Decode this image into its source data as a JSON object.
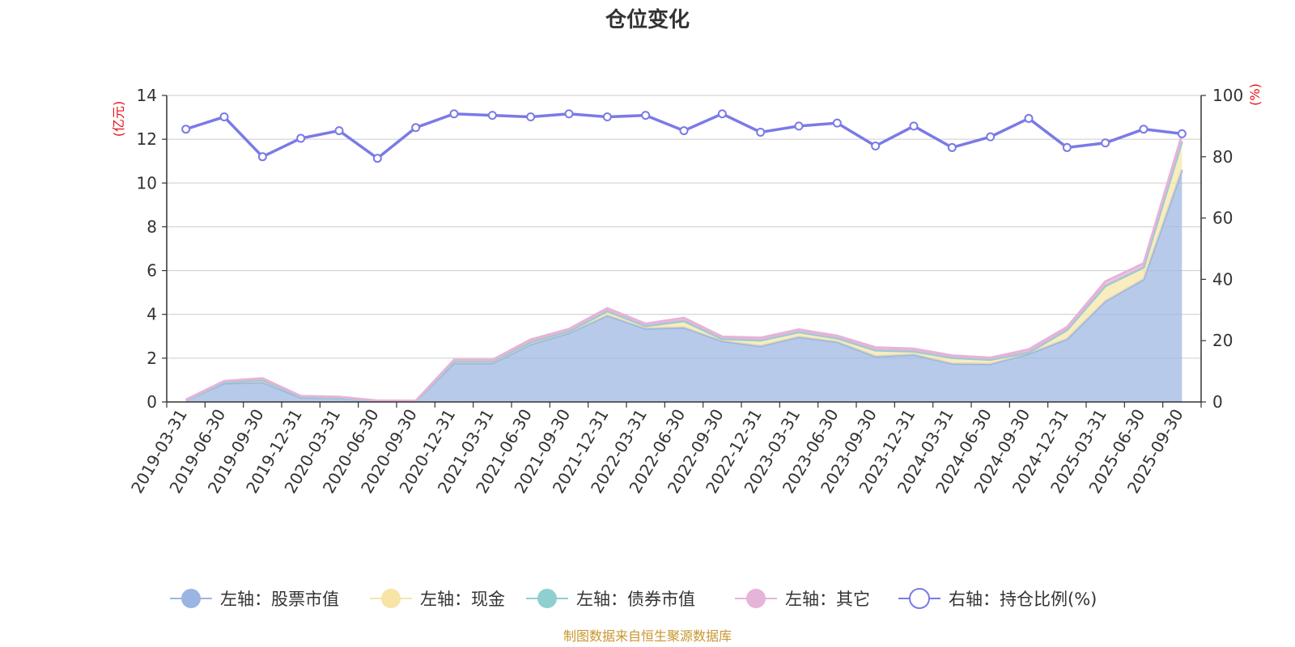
{
  "chart_data": {
    "type": "area",
    "title": "仓位变化",
    "left_axis_unit": "(亿元)",
    "right_axis_unit": "(%)",
    "y_left": {
      "min": 0,
      "max": 14,
      "ticks": [
        0,
        2,
        4,
        6,
        8,
        10,
        12,
        14
      ]
    },
    "y_right": {
      "min": 0,
      "max": 100,
      "ticks": [
        0,
        20,
        40,
        60,
        80,
        100
      ]
    },
    "grid": true,
    "legend_position": "bottom",
    "categories": [
      "2019-03-31",
      "2019-06-30",
      "2019-09-30",
      "2019-12-31",
      "2020-03-31",
      "2020-06-30",
      "2020-09-30",
      "2020-12-31",
      "2021-03-31",
      "2021-06-30",
      "2021-09-30",
      "2021-12-31",
      "2022-03-31",
      "2022-06-30",
      "2022-09-30",
      "2022-12-31",
      "2023-03-31",
      "2023-06-30",
      "2023-09-30",
      "2023-12-31",
      "2024-03-31",
      "2024-06-30",
      "2024-09-30",
      "2024-12-31",
      "2025-03-31",
      "2025-06-30",
      "2025-09-30"
    ],
    "series": [
      {
        "name": "左轴：股票市值",
        "axis": "left",
        "type": "area",
        "color": "#9bb5e2",
        "values": [
          0.07,
          0.85,
          0.9,
          0.2,
          0.17,
          0.04,
          0.03,
          1.77,
          1.77,
          2.63,
          3.15,
          3.95,
          3.35,
          3.4,
          2.78,
          2.55,
          2.97,
          2.74,
          2.08,
          2.16,
          1.75,
          1.73,
          2.2,
          2.87,
          4.6,
          5.6,
          10.6
        ]
      },
      {
        "name": "左轴：现金",
        "axis": "left",
        "type": "area",
        "color": "#f7e4a6",
        "values": [
          0.01,
          0.05,
          0.1,
          0.04,
          0.03,
          0.01,
          0.01,
          0.08,
          0.08,
          0.1,
          0.08,
          0.2,
          0.12,
          0.3,
          0.1,
          0.26,
          0.22,
          0.17,
          0.28,
          0.15,
          0.27,
          0.2,
          0.06,
          0.42,
          0.7,
          0.55,
          1.3
        ]
      },
      {
        "name": "左轴：债券市值",
        "axis": "left",
        "type": "area",
        "color": "#8ecfd0",
        "values": [
          0,
          0,
          0,
          0,
          0,
          0,
          0,
          0,
          0,
          0,
          0,
          0,
          0,
          0,
          0,
          0,
          0,
          0,
          0,
          0,
          0,
          0,
          0,
          0,
          0,
          0,
          0
        ]
      },
      {
        "name": "左轴：其它",
        "axis": "left",
        "type": "area",
        "color": "#e6b3d9",
        "values": [
          0.02,
          0.05,
          0.08,
          0.03,
          0.03,
          0.01,
          0.01,
          0.07,
          0.07,
          0.12,
          0.1,
          0.13,
          0.1,
          0.14,
          0.1,
          0.12,
          0.12,
          0.11,
          0.13,
          0.12,
          0.1,
          0.09,
          0.14,
          0.13,
          0.2,
          0.18,
          0.3
        ]
      },
      {
        "name": "右轴：持仓比例(%)",
        "axis": "right",
        "type": "line",
        "color": "#7a7ae6",
        "values": [
          89,
          93,
          80,
          86,
          88.5,
          79.5,
          89.5,
          94,
          93.5,
          93,
          94,
          93,
          93.5,
          88.5,
          94,
          88,
          90,
          91,
          83.5,
          90,
          83,
          86.5,
          92.5,
          83,
          84.5,
          89,
          87.5
        ]
      }
    ],
    "source_note": "制图数据来自恒生聚源数据库"
  }
}
